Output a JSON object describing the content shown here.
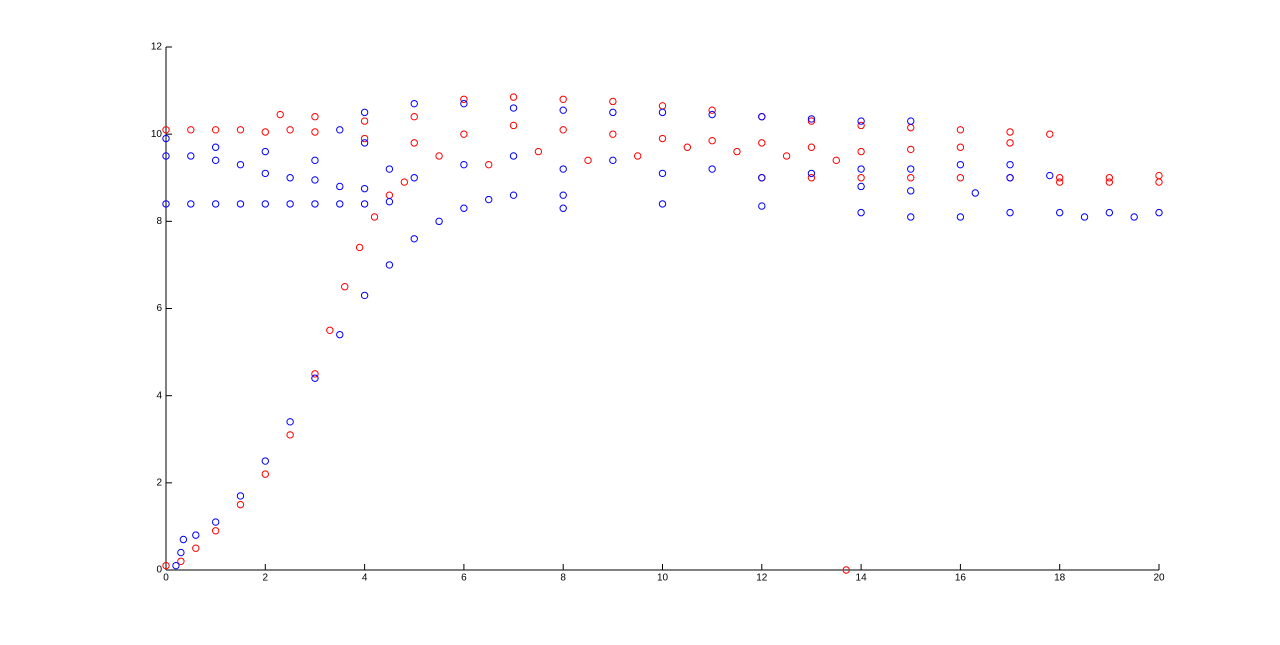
{
  "chart_data": {
    "type": "scatter",
    "xlim": [
      0,
      20
    ],
    "xticks": [
      0,
      2,
      4,
      6,
      8,
      10,
      12,
      14,
      16,
      18,
      20
    ],
    "ylim": [
      0,
      12
    ],
    "yticks": [
      0,
      2,
      4,
      6,
      8,
      10,
      12
    ],
    "grid": false,
    "series": [
      {
        "color": "#ff0000",
        "x": [
          0,
          0.3,
          0.6,
          1,
          1.5,
          2,
          2.5,
          3,
          3.3,
          3.6,
          3.9,
          4.2,
          4.5,
          4.8,
          0,
          0.5,
          1,
          1.5,
          2,
          2.5,
          3,
          2.3,
          3,
          4,
          5,
          6,
          7,
          8,
          9,
          10,
          11,
          12,
          13,
          14,
          15,
          16,
          17,
          17.8,
          17,
          16,
          15,
          14,
          13,
          12,
          11,
          10,
          9,
          8,
          7,
          6,
          5,
          4,
          12,
          13,
          14,
          15,
          16,
          17,
          18,
          19,
          20,
          18,
          19,
          20,
          5.5,
          6.5,
          7.5,
          8.5,
          9.5,
          10.5,
          11.5,
          12.5,
          13.5,
          13.7
        ],
        "values": [
          0.1,
          0.2,
          0.5,
          0.9,
          1.5,
          2.2,
          3.1,
          4.5,
          5.5,
          6.5,
          7.4,
          8.1,
          8.6,
          8.9,
          10.1,
          10.1,
          10.1,
          10.1,
          10.05,
          10.1,
          10.05,
          10.45,
          10.4,
          10.3,
          10.4,
          10.8,
          10.85,
          10.8,
          10.75,
          10.65,
          10.55,
          10.4,
          10.3,
          10.2,
          10.15,
          10.1,
          10.05,
          10,
          9.8,
          9.7,
          9.65,
          9.6,
          9.7,
          9.8,
          9.85,
          9.9,
          10,
          10.1,
          10.2,
          10,
          9.8,
          9.9,
          9,
          9,
          9,
          9,
          9,
          9,
          9,
          9,
          9.05,
          8.9,
          8.9,
          8.9,
          9.5,
          9.3,
          9.6,
          9.4,
          9.5,
          9.7,
          9.6,
          9.5,
          9.4,
          0
        ]
      },
      {
        "color": "#0000ff",
        "x": [
          0.2,
          0.3,
          0.35,
          0.6,
          1,
          1.5,
          2,
          2.5,
          3,
          3.5,
          4,
          4.5,
          5,
          5.5,
          6,
          6.5,
          7,
          8,
          0,
          0.5,
          1,
          1.5,
          2,
          2.5,
          3,
          3.5,
          4,
          4.5,
          0,
          0.5,
          1,
          1.5,
          2,
          2.5,
          3,
          3.5,
          4,
          0,
          1,
          2,
          3,
          3.5,
          4,
          5,
          6,
          7,
          8,
          9,
          10,
          11,
          12,
          13,
          14,
          15,
          4,
          4.5,
          5,
          6,
          7,
          8,
          9,
          10,
          11,
          12,
          13,
          14,
          15,
          16,
          17,
          17.8,
          17,
          16.3,
          15,
          14,
          8,
          10,
          12,
          14,
          15,
          16,
          17,
          18,
          19,
          20,
          19.5,
          18.5
        ],
        "values": [
          0.1,
          0.4,
          0.7,
          0.8,
          1.1,
          1.7,
          2.5,
          3.4,
          4.4,
          5.4,
          6.3,
          7,
          7.6,
          8,
          8.3,
          8.5,
          8.6,
          8.6,
          8.4,
          8.4,
          8.4,
          8.4,
          8.4,
          8.4,
          8.4,
          8.4,
          8.4,
          8.45,
          9.5,
          9.5,
          9.4,
          9.3,
          9.1,
          9,
          8.95,
          8.8,
          8.75,
          9.9,
          9.7,
          9.6,
          9.4,
          10.1,
          10.5,
          10.7,
          10.7,
          10.6,
          10.55,
          10.5,
          10.5,
          10.45,
          10.4,
          10.35,
          10.3,
          10.3,
          9.8,
          9.2,
          9,
          9.3,
          9.5,
          9.2,
          9.4,
          9.1,
          9.2,
          9,
          9.1,
          9.2,
          9.2,
          9.3,
          9.3,
          9.05,
          9,
          8.65,
          8.7,
          8.8,
          8.3,
          8.4,
          8.35,
          8.2,
          8.1,
          8.1,
          8.2,
          8.2,
          8.2,
          8.2,
          8.1,
          8.1
        ]
      }
    ]
  }
}
